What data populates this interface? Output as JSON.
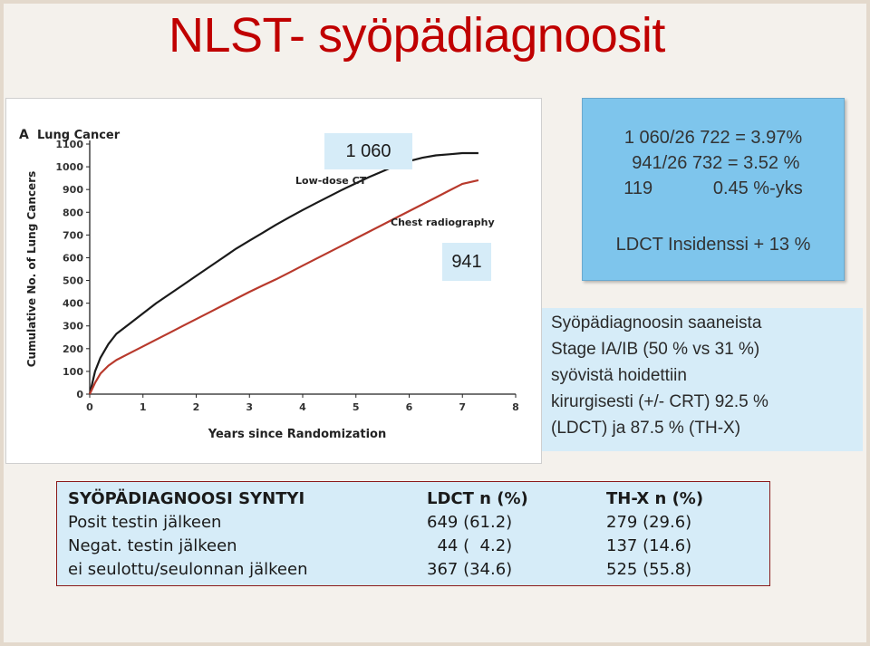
{
  "slide": {
    "title": "NLST- syöpädiagnoosit",
    "box_1060": "1 060",
    "box_941": "941",
    "calc_lines": [
      "1 060/26 722 = 3.97%",
      " 941/26 732 = 3.52 %",
      "119            0.45 %-yks"
    ],
    "calc_insidence": "LDCT Insidenssi + 13 %",
    "stage_lines": [
      "Syöpädiagnoosin saaneista",
      "Stage IA/IB (50 % vs 31 %)",
      "syövistä hoidettiin",
      "kirurgisesti (+/- CRT) 92.5 %",
      "(LDCT) ja 87.5 % (TH-X)"
    ]
  },
  "table": {
    "headers": [
      "SYÖPÄDIAGNOOSI SYNTYI",
      "LDCT n (%)",
      "TH-X n (%)"
    ],
    "rows": [
      [
        "Posit testin jälkeen",
        "649 (61.2)",
        "279 (29.6)"
      ],
      [
        "Negat. testin jälkeen",
        "  44 (  4.2)",
        "137 (14.6)"
      ],
      [
        "ei seulottu/seulonnan jälkeen",
        "367 (34.6)",
        "525 (55.8)"
      ]
    ]
  },
  "chart_data": {
    "type": "line",
    "panel_label": "A",
    "title": "Lung Cancer",
    "xlabel": "Years since Randomization",
    "ylabel": "Cumulative No. of Lung Cancers",
    "xlim": [
      0,
      8
    ],
    "ylim": [
      0,
      1100
    ],
    "xticks": [
      "0",
      "1",
      "2",
      "3",
      "4",
      "5",
      "6",
      "7",
      "8"
    ],
    "yticks": [
      "0",
      "100",
      "200",
      "300",
      "400",
      "500",
      "600",
      "700",
      "800",
      "900",
      "1000",
      "1100"
    ],
    "grid": false,
    "series": [
      {
        "name": "Low-dose CT",
        "color": "#1a1a1a",
        "x": [
          0,
          0.1,
          0.2,
          0.35,
          0.5,
          0.75,
          1.0,
          1.25,
          1.5,
          1.75,
          2.0,
          2.25,
          2.5,
          2.75,
          3.0,
          3.25,
          3.5,
          3.75,
          4.0,
          4.25,
          4.5,
          4.75,
          5.0,
          5.25,
          5.5,
          5.75,
          6.0,
          6.25,
          6.5,
          6.75,
          7.0,
          7.3
        ],
        "values": [
          0,
          100,
          160,
          220,
          265,
          310,
          355,
          400,
          440,
          480,
          520,
          560,
          600,
          640,
          675,
          710,
          745,
          778,
          810,
          840,
          870,
          900,
          928,
          955,
          980,
          1005,
          1025,
          1040,
          1050,
          1055,
          1060,
          1060
        ]
      },
      {
        "name": "Chest radiography",
        "color": "#b8392c",
        "x": [
          0,
          0.1,
          0.2,
          0.35,
          0.5,
          0.75,
          1.0,
          1.25,
          1.5,
          1.75,
          2.0,
          2.25,
          2.5,
          2.75,
          3.0,
          3.25,
          3.5,
          3.75,
          4.0,
          4.25,
          4.5,
          4.75,
          5.0,
          5.25,
          5.5,
          5.75,
          6.0,
          6.25,
          6.5,
          6.75,
          7.0,
          7.3
        ],
        "values": [
          0,
          50,
          90,
          125,
          150,
          180,
          210,
          240,
          270,
          300,
          330,
          360,
          390,
          420,
          450,
          478,
          505,
          535,
          565,
          595,
          625,
          655,
          685,
          715,
          745,
          775,
          805,
          835,
          865,
          895,
          925,
          941
        ]
      }
    ]
  }
}
